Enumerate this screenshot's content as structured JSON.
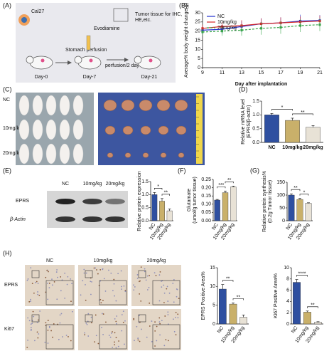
{
  "panel_labels": [
    "(A)",
    "(B)",
    "(C)",
    "(D)",
    "(E)",
    "(F)",
    "(G)",
    "(H)"
  ],
  "diagram": {
    "cell": "Cal27",
    "step1": "Stomach perfusion",
    "drug": "Evodiamine",
    "step2": "perfusion/2 day",
    "end": [
      "Tumor tissue for IHC,",
      "HE,etc."
    ],
    "days": [
      "Day-0",
      "Day-7",
      "Day-21"
    ]
  },
  "photos": {
    "row_labels": [
      "NC",
      "10mg/kg",
      "20mg/kg"
    ]
  },
  "blot": {
    "lane_labels": [
      "NC",
      "10mg/kg",
      "20mg/kg"
    ],
    "row_labels": [
      "EPRS",
      "β-Actin"
    ]
  },
  "ihc": {
    "column_labels": [
      "NC",
      "10mg/kg",
      "20mg/kg"
    ],
    "row_labels": [
      "EPRS",
      "Ki67"
    ]
  },
  "chart_data": [
    {
      "type": "line",
      "ylabel": "Average% body weight change(g)",
      "xlabel": "Day after implantation",
      "x": [
        9,
        11,
        13,
        15,
        17,
        19,
        21
      ],
      "xlim": [
        9,
        21
      ],
      "xticks": [
        9,
        11,
        13,
        15,
        17,
        19,
        21
      ],
      "ylim": [
        0,
        30
      ],
      "yticks": [
        0,
        5,
        10,
        15,
        20,
        25,
        30
      ],
      "legend": "upper left",
      "series": [
        {
          "name": "NC",
          "color": "#1f2fd0",
          "values": [
            20.5,
            21,
            22.5,
            24,
            24.5,
            25.5,
            25.8
          ],
          "errors": [
            2,
            2.5,
            3,
            3,
            3,
            3.5,
            3
          ]
        },
        {
          "name": "10mg/kg",
          "color": "#d62728",
          "values": [
            21.5,
            22.5,
            23,
            24,
            24.5,
            25,
            25.5
          ],
          "errors": [
            2,
            2.5,
            3,
            3,
            3,
            3,
            3
          ]
        },
        {
          "name": "20mg/kg",
          "color": "#3aa64c",
          "dashed": true,
          "values": [
            19.5,
            20,
            20.5,
            21.5,
            22,
            23,
            23.5
          ],
          "errors": [
            2,
            2.5,
            3,
            3.5,
            3.5,
            3.5,
            3.5
          ]
        }
      ]
    },
    {
      "type": "bar",
      "ylabel": [
        "Relative mRNA level",
        "(EPRS/β-actin)"
      ],
      "categories": [
        "NC",
        "10mg/kg",
        "20mg/kg"
      ],
      "values": [
        1.0,
        0.8,
        0.55
      ],
      "errors": [
        0.05,
        0.08,
        0.06
      ],
      "colors": [
        "#2e4fa0",
        "#c9b06a",
        "#e8e2d6"
      ],
      "ylim": [
        0,
        1.5
      ],
      "yticks": [
        {
          "value": 0,
          "label": "0.0"
        },
        0.5,
        {
          "value": 1,
          "label": "1.0"
        },
        1.5
      ],
      "annotations": [
        {
          "text": "*",
          "from": 0,
          "to": 1
        },
        {
          "text": "**",
          "from": 1,
          "to": 2
        }
      ]
    },
    {
      "type": "bar",
      "ylabel": "Relative protein expression",
      "categories": [
        "NC",
        "10mg/kg",
        "20mg/kg"
      ],
      "values": [
        1.0,
        0.75,
        0.38
      ],
      "errors": [
        0.08,
        0.1,
        0.07
      ],
      "colors": [
        "#2e4fa0",
        "#c9b06a",
        "#e8e2d6"
      ],
      "ylim": [
        0,
        1.5
      ],
      "yticks": [
        {
          "value": 0,
          "label": "0.0"
        },
        0.5,
        {
          "value": 1,
          "label": "1.0"
        },
        1.5
      ],
      "annotations": [
        {
          "text": "*",
          "from": 0,
          "to": 1
        },
        {
          "text": "**",
          "from": 1,
          "to": 2
        }
      ]
    },
    {
      "type": "bar",
      "ylabel": [
        "Glutamate",
        "(umol/g tumor tissue)"
      ],
      "categories": [
        "NC",
        "10mg/kg",
        "20mg/kg"
      ],
      "values": [
        0.125,
        0.17,
        0.205
      ],
      "errors": [
        0.004,
        0.01,
        0.005
      ],
      "colors": [
        "#2e4fa0",
        "#c9b06a",
        "#e8e2d6"
      ],
      "ylim": [
        0,
        0.25
      ],
      "yticks": [
        {
          "value": 0,
          "label": "0.00"
        },
        0.05,
        {
          "value": 0.1,
          "label": "0.10"
        },
        0.15,
        {
          "value": 0.2,
          "label": "0.20"
        },
        0.25
      ],
      "annotations": [
        {
          "text": "***",
          "from": 0,
          "to": 1
        },
        {
          "text": "**",
          "from": 1,
          "to": 2
        }
      ]
    },
    {
      "type": "bar",
      "ylabel": [
        "Relative protein synthesis%",
        "(0.2g Tumor tissue)"
      ],
      "categories": [
        "NC",
        "10mg/kg",
        "20mg/kg"
      ],
      "values": [
        100,
        83,
        68
      ],
      "errors": [
        5,
        4,
        2
      ],
      "colors": [
        "#2e4fa0",
        "#c9b06a",
        "#e8e2d6"
      ],
      "ylim": [
        0,
        150
      ],
      "yticks": [
        0,
        50,
        100,
        150
      ],
      "annotations": [
        {
          "text": "**",
          "from": 0,
          "to": 1
        },
        {
          "text": "*",
          "from": 1,
          "to": 2
        }
      ]
    },
    {
      "type": "bar",
      "ylabel": "EPRS Positive Area%",
      "categories": [
        "NC",
        "10mg/kg",
        "20mg/kg"
      ],
      "values": [
        9.3,
        5.3,
        1.8
      ],
      "errors": [
        1.2,
        0.3,
        0.6
      ],
      "colors": [
        "#2e4fa0",
        "#c9b06a",
        "#e8e2d6"
      ],
      "ylim": [
        0,
        15
      ],
      "yticks": [
        0,
        5,
        10,
        15
      ],
      "annotations": [
        {
          "text": "**",
          "from": 0,
          "to": 1
        },
        {
          "text": "**",
          "from": 1,
          "to": 2
        }
      ]
    },
    {
      "type": "bar",
      "ylabel": "Ki67 Positive Area%",
      "categories": [
        "NC",
        "10mg/kg",
        "20mg/kg"
      ],
      "values": [
        7.4,
        2.1,
        0.3
      ],
      "errors": [
        0.5,
        0.2,
        0.1
      ],
      "colors": [
        "#2e4fa0",
        "#c9b06a",
        "#e8e2d6"
      ],
      "ylim": [
        0,
        10
      ],
      "yticks": [
        0,
        2,
        4,
        6,
        8,
        10
      ],
      "annotations": [
        {
          "text": "****",
          "from": 0,
          "to": 1
        },
        {
          "text": "**",
          "from": 1,
          "to": 2
        }
      ]
    }
  ]
}
